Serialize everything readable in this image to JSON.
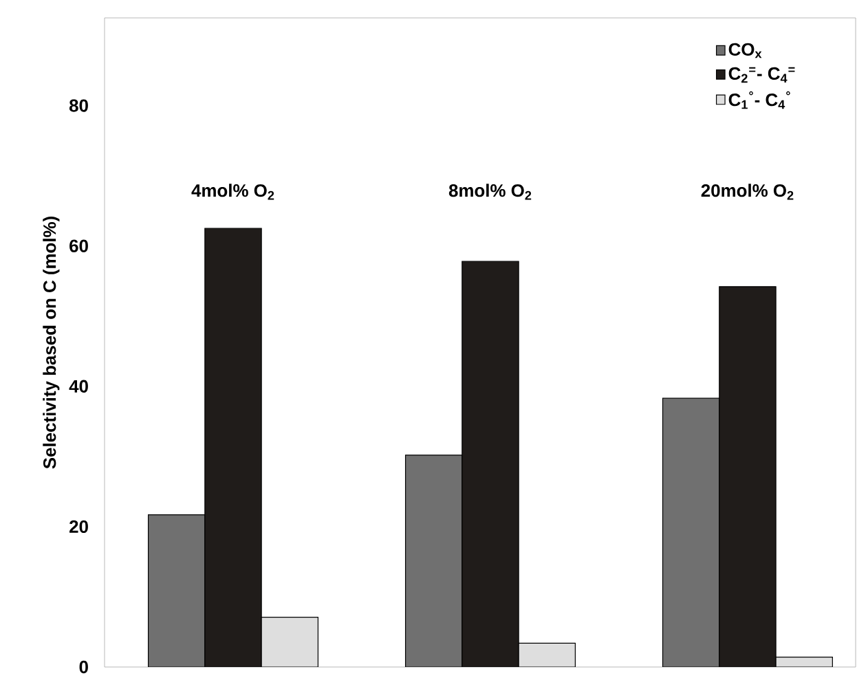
{
  "chart_data": {
    "type": "bar",
    "ylabel": "Selectivity based on C (mol%)",
    "categories": [
      "4mol% O$_{2}$",
      "8mol% O$_{2}$",
      "20mol% O$_{2}$"
    ],
    "series": [
      {
        "name": "CO$_{x}$",
        "color": "#707070",
        "values": [
          21.7,
          30.2,
          38.3
        ]
      },
      {
        "name": "C$_{2}$$^{=}$- C$_{4}$$^{=}$",
        "color": "#201c1a",
        "values": [
          62.5,
          57.8,
          54.2
        ]
      },
      {
        "name": "C$_{1}$$^{°}$- C$_{4}$$^{°}$",
        "color": "#dedede",
        "values": [
          7.1,
          3.4,
          1.4
        ]
      }
    ],
    "ylim": [
      0,
      92.5
    ],
    "yticks": [
      0,
      20,
      40,
      60,
      80
    ],
    "grid": false,
    "legend": "top right"
  }
}
